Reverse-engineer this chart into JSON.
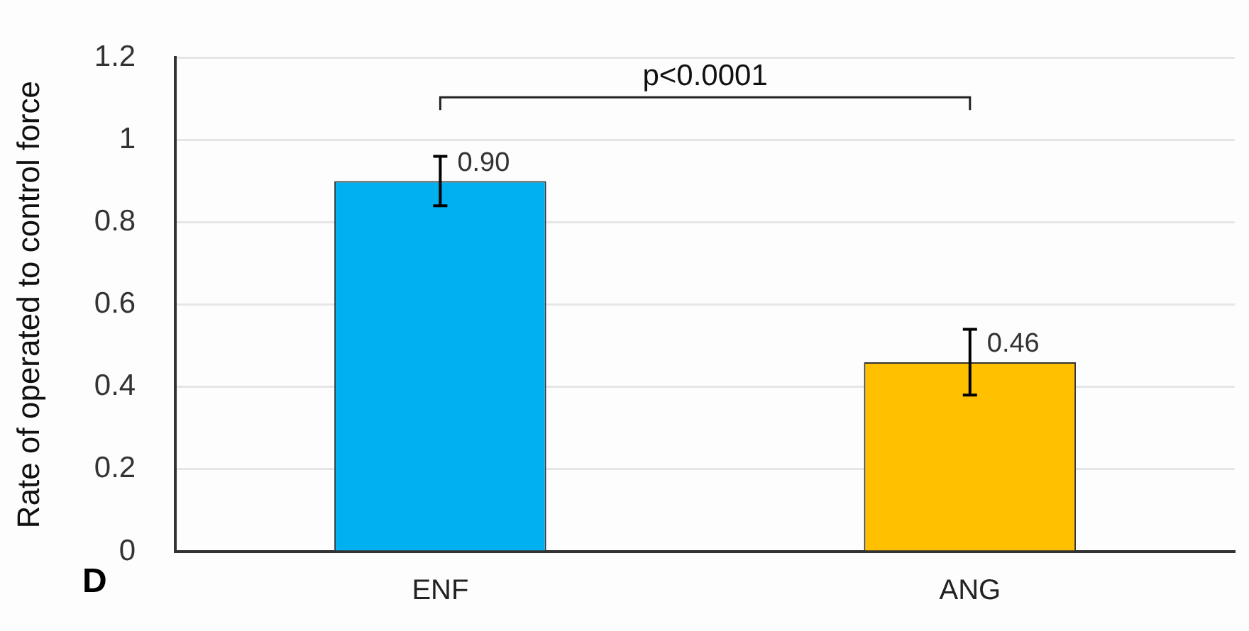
{
  "chart_data": {
    "type": "bar",
    "ylabel": "Rate of operated to control force",
    "categories": [
      "ENF",
      "ANG"
    ],
    "values": [
      0.9,
      0.46
    ],
    "colors": [
      "#00b0f0",
      "#ffc000"
    ],
    "errors": [
      0.06,
      0.08
    ],
    "value_labels": [
      "0.90",
      "0.46"
    ],
    "ylim": [
      0,
      1.2
    ],
    "yticks": [
      0,
      0.2,
      0.4,
      0.6,
      0.8,
      1,
      1.2
    ],
    "grid": "y",
    "legend": false,
    "annotations": [
      "p<0.0001",
      "D"
    ]
  }
}
